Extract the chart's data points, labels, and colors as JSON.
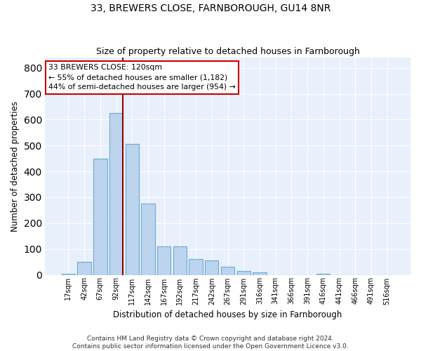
{
  "title": "33, BREWERS CLOSE, FARNBOROUGH, GU14 8NR",
  "subtitle": "Size of property relative to detached houses in Farnborough",
  "xlabel": "Distribution of detached houses by size in Farnborough",
  "ylabel": "Number of detached properties",
  "bar_color": "#bcd4ee",
  "bar_edge_color": "#6aaad4",
  "background_color": "#e8f0fb",
  "grid_color": "#ffffff",
  "annotation_box_color": "#cc0000",
  "annotation_line_color": "#990000",
  "bins": [
    "17sqm",
    "42sqm",
    "67sqm",
    "92sqm",
    "117sqm",
    "142sqm",
    "167sqm",
    "192sqm",
    "217sqm",
    "242sqm",
    "267sqm",
    "291sqm",
    "316sqm",
    "341sqm",
    "366sqm",
    "391sqm",
    "416sqm",
    "441sqm",
    "466sqm",
    "491sqm",
    "516sqm"
  ],
  "values": [
    5,
    50,
    450,
    625,
    505,
    275,
    110,
    110,
    60,
    55,
    30,
    15,
    10,
    0,
    0,
    0,
    5,
    0,
    0,
    0,
    0
  ],
  "ylim": [
    0,
    840
  ],
  "yticks": [
    0,
    100,
    200,
    300,
    400,
    500,
    600,
    700,
    800
  ],
  "red_line_bin_index": 3,
  "annotation_text": "33 BREWERS CLOSE: 120sqm\n← 55% of detached houses are smaller (1,182)\n44% of semi-detached houses are larger (954) →",
  "footer_text": "Contains HM Land Registry data © Crown copyright and database right 2024.\nContains public sector information licensed under the Open Government Licence v3.0."
}
